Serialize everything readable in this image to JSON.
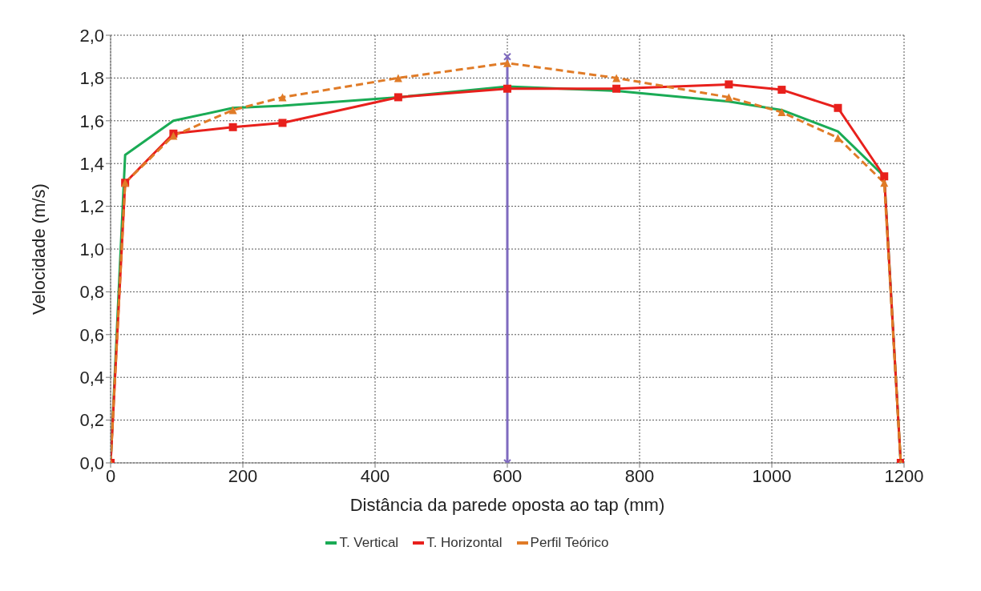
{
  "chart_data": {
    "type": "line",
    "xlabel": "Distância da parede oposta ao tap (mm)",
    "ylabel": "Velocidade (m/s)",
    "xlim": [
      0,
      1200
    ],
    "xticks": [
      0,
      200,
      400,
      600,
      800,
      1000,
      1200
    ],
    "ylim": [
      0,
      2
    ],
    "yticks": [
      {
        "value": 0,
        "label": "0,0"
      },
      {
        "value": 0.2,
        "label": "0,2"
      },
      {
        "value": 0.4,
        "label": "0,4"
      },
      {
        "value": 0.6,
        "label": "0,6"
      },
      {
        "value": 0.8,
        "label": "0,8"
      },
      {
        "value": 1,
        "label": "1,0"
      },
      {
        "value": 1.2,
        "label": "1,2"
      },
      {
        "value": 1.4,
        "label": "1,4"
      },
      {
        "value": 1.6,
        "label": "1,6"
      },
      {
        "value": 1.8,
        "label": "1,8"
      },
      {
        "value": 2,
        "label": "2,0"
      }
    ],
    "grid": true,
    "legend": "bottom",
    "series": [
      {
        "name": "T. Vertical",
        "color": "#1aab55",
        "marker": "none",
        "line_style": "solid",
        "x": [
          0,
          22,
          95,
          185,
          260,
          435,
          600,
          765,
          935,
          1015,
          1100,
          1170,
          1195
        ],
        "values": [
          0,
          1.44,
          1.6,
          1.66,
          1.67,
          1.71,
          1.76,
          1.74,
          1.69,
          1.65,
          1.55,
          1.34,
          0
        ]
      },
      {
        "name": "T. Horizontal",
        "color": "#e8201c",
        "marker": "square",
        "line_style": "solid",
        "x": [
          0,
          22,
          95,
          185,
          260,
          435,
          600,
          765,
          935,
          1015,
          1100,
          1170,
          1195
        ],
        "values": [
          0,
          1.31,
          1.54,
          1.57,
          1.59,
          1.71,
          1.75,
          1.75,
          1.77,
          1.745,
          1.66,
          1.34,
          0
        ]
      },
      {
        "name": "Perfil Teórico",
        "color": "#e07b27",
        "marker": "triangle",
        "line_style": "dashed",
        "x": [
          0,
          22,
          95,
          185,
          260,
          435,
          600,
          765,
          935,
          1015,
          1100,
          1170,
          1195
        ],
        "values": [
          0,
          1.31,
          1.53,
          1.65,
          1.71,
          1.8,
          1.87,
          1.8,
          1.71,
          1.64,
          1.52,
          1.31,
          0
        ]
      },
      {
        "color": "#7f6bbf",
        "marker": "cross",
        "line_style": "solid",
        "x": [
          600,
          600
        ],
        "values": [
          0,
          1.9
        ]
      }
    ]
  }
}
